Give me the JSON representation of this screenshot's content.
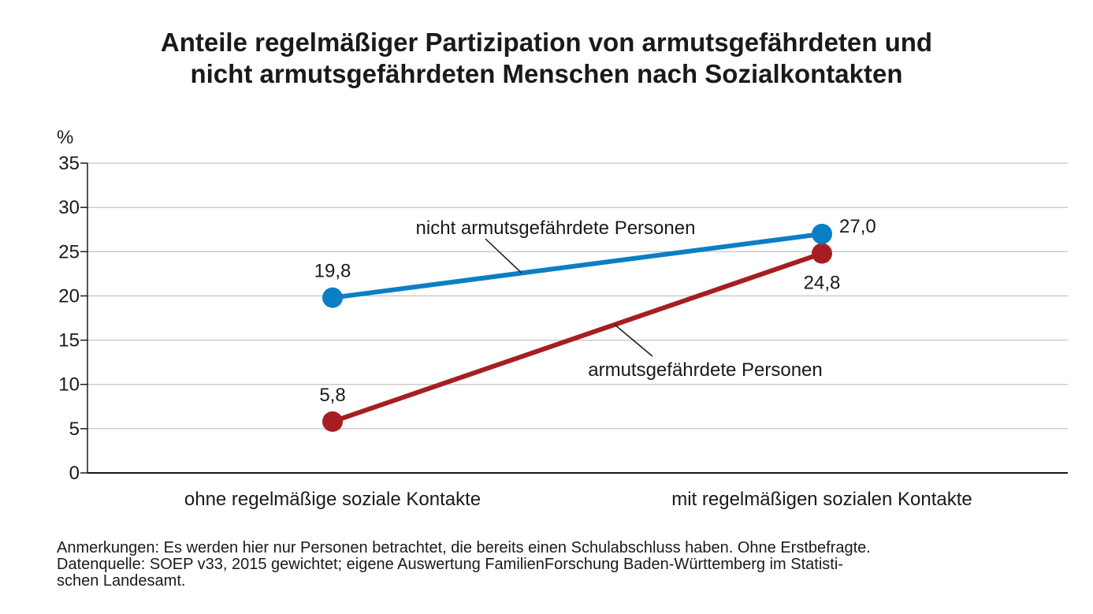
{
  "chart_data": {
    "type": "line",
    "title_lines": [
      "Anteile regelmäßiger Partizipation von armutsgefährdeten und",
      "nicht armutsgefährdeten Menschen nach Sozialkontakten"
    ],
    "ylabel": "%",
    "ylim": [
      0,
      35
    ],
    "yticks": [
      "0",
      "5",
      "10",
      "15",
      "20",
      "25",
      "30",
      "35"
    ],
    "ytick_values": [
      0,
      5,
      10,
      15,
      20,
      25,
      30,
      35
    ],
    "grid": true,
    "categories": [
      "ohne regelmäßige soziale Kontakte",
      "mit regelmäßigen sozialen Kontakte"
    ],
    "series": [
      {
        "name": "nicht armutsgefährdete Personen",
        "color": "#0a7fc4",
        "values": [
          19.8,
          27.0
        ],
        "labels": [
          "19,8",
          "27,0"
        ]
      },
      {
        "name": "armutsgefährdete Personen",
        "color": "#a61e22",
        "values": [
          5.8,
          24.8
        ],
        "labels": [
          "5,8",
          "24,8"
        ]
      }
    ]
  },
  "notes": {
    "line1": "Anmerkungen: Es werden hier nur Personen betrachtet, die bereits einen Schulabschluss haben. Ohne Erstbefragte.",
    "line2": "Datenquelle: SOEP v33, 2015 gewichtet; eigene Auswertung FamilienForschung Baden-Württemberg im Statisti-",
    "line3": "schen Landesamt."
  }
}
